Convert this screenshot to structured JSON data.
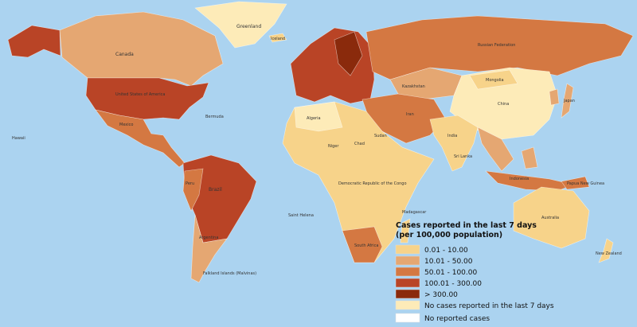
{
  "legend": {
    "title": "Cases reported in the last 7 days",
    "subtitle": "(per 100,000 population)",
    "items": [
      {
        "label": "0.01 - 10.00",
        "color": "#f7d38a"
      },
      {
        "label": "10.01 - 50.00",
        "color": "#e5a772"
      },
      {
        "label": "50.01 - 100.00",
        "color": "#d47842"
      },
      {
        "label": "100.01 - 300.00",
        "color": "#b94426"
      },
      {
        "label": "> 300.00",
        "color": "#8a2a0c"
      },
      {
        "label": "No cases reported in the last 7 days",
        "color": "#fdebb8"
      },
      {
        "label": "No reported cases",
        "color": "#ffffff"
      }
    ]
  },
  "labels": [
    "Greenland",
    "Canada",
    "United States of America",
    "Mexico",
    "Brazil",
    "Peru",
    "Argentina",
    "Russian Federation",
    "Kazakhstan",
    "Mongolia",
    "China",
    "India",
    "Australia",
    "New Zealand",
    "Iceland",
    "Algeria",
    "Niger",
    "Chad",
    "Sudan",
    "Democratic Republic of the Congo",
    "South Africa",
    "Madagascar",
    "Iran",
    "Indonesia",
    "Japan",
    "Sri Lanka",
    "Hawaii",
    "Falkland Islands (Malvinas)",
    "Bermuda",
    "Saint Helena",
    "Papua New Guinea"
  ]
}
